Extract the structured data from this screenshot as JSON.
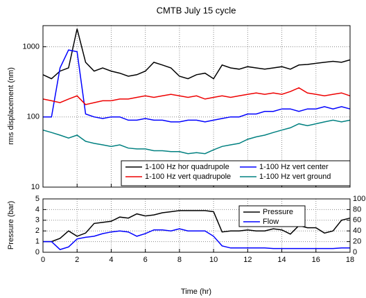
{
  "chart_data": [
    {
      "type": "line",
      "title": "CMTB July 15 cycle",
      "ylabel": "rms displacement (nm)",
      "log_scale": true,
      "grid": true,
      "legend": "lower right",
      "x": [
        0,
        0.5,
        1,
        1.5,
        2,
        2.5,
        3,
        3.5,
        4,
        4.5,
        5,
        5.5,
        6,
        6.5,
        7,
        7.5,
        8,
        8.5,
        9,
        9.5,
        10,
        10.5,
        11,
        11.5,
        12,
        12.5,
        13,
        13.5,
        14,
        14.5,
        15,
        15.5,
        16,
        16.5,
        17,
        17.5,
        18
      ],
      "xlim": [
        0,
        18
      ],
      "xticks": [
        0,
        2,
        4,
        6,
        8,
        10,
        12,
        14,
        16,
        18
      ],
      "ylim": [
        10,
        2000
      ],
      "yticks": [
        10,
        100,
        1000
      ],
      "series": [
        {
          "name": "1-100 Hz hor quadrupole",
          "color": "#000000",
          "values": [
            400,
            350,
            450,
            500,
            1800,
            600,
            450,
            500,
            450,
            420,
            380,
            400,
            450,
            600,
            550,
            500,
            380,
            350,
            400,
            420,
            350,
            550,
            500,
            480,
            520,
            500,
            480,
            500,
            520,
            480,
            550,
            560,
            580,
            600,
            620,
            600,
            650
          ]
        },
        {
          "name": "1-100 Hz vert center",
          "color": "#0000ff",
          "values": [
            100,
            100,
            500,
            900,
            850,
            110,
            100,
            95,
            100,
            100,
            90,
            90,
            95,
            90,
            90,
            85,
            85,
            90,
            90,
            85,
            90,
            95,
            100,
            100,
            110,
            110,
            120,
            120,
            130,
            130,
            120,
            130,
            130,
            140,
            130,
            140,
            130
          ]
        },
        {
          "name": "1-100 Hz vert quadrupole",
          "color": "#ee0000",
          "values": [
            180,
            170,
            160,
            180,
            200,
            150,
            160,
            170,
            170,
            180,
            180,
            190,
            200,
            190,
            200,
            210,
            200,
            190,
            200,
            180,
            190,
            200,
            190,
            200,
            210,
            220,
            210,
            220,
            210,
            230,
            260,
            220,
            210,
            200,
            210,
            220,
            200
          ]
        },
        {
          "name": "1-100 Hz vert ground",
          "color": "#008080",
          "values": [
            65,
            60,
            55,
            50,
            55,
            45,
            42,
            40,
            38,
            40,
            36,
            35,
            35,
            33,
            33,
            32,
            32,
            30,
            31,
            30,
            34,
            38,
            40,
            42,
            48,
            52,
            55,
            60,
            65,
            70,
            80,
            75,
            80,
            85,
            90,
            85,
            90
          ]
        }
      ]
    },
    {
      "type": "line",
      "ylabel": "Pressure (bar)",
      "xlabel": "Time (hr)",
      "grid": true,
      "legend": "upper center",
      "x": [
        0,
        0.5,
        1,
        1.5,
        2,
        2.5,
        3,
        3.5,
        4,
        4.5,
        5,
        5.5,
        6,
        6.5,
        7,
        7.5,
        8,
        8.5,
        9,
        9.5,
        10,
        10.5,
        11,
        11.5,
        12,
        12.5,
        13,
        13.5,
        14,
        14.5,
        15,
        15.5,
        16,
        16.5,
        17,
        17.5,
        18
      ],
      "xlim": [
        0,
        18
      ],
      "xticks": [
        0,
        2,
        4,
        6,
        8,
        10,
        12,
        14,
        16,
        18
      ],
      "ylim": [
        0,
        5
      ],
      "yticks": [
        0,
        1,
        2,
        3,
        4,
        5
      ],
      "y2lim": [
        0,
        100
      ],
      "y2ticks": [
        0,
        20,
        40,
        60,
        80,
        100
      ],
      "series": [
        {
          "name": "Pressure",
          "color": "#000000",
          "values": [
            1.0,
            1.0,
            1.3,
            2.0,
            1.5,
            1.8,
            2.7,
            2.8,
            2.9,
            3.3,
            3.2,
            3.6,
            3.4,
            3.5,
            3.7,
            3.8,
            3.9,
            3.9,
            3.9,
            3.9,
            3.8,
            1.9,
            2.0,
            2.0,
            2.1,
            2.0,
            2.0,
            2.2,
            2.1,
            1.7,
            2.5,
            2.3,
            2.3,
            1.8,
            2.0,
            3.0,
            3.2
          ]
        },
        {
          "name": "Flow",
          "color": "#0000ff",
          "axis": "y2",
          "values": [
            20,
            20,
            5,
            10,
            25,
            28,
            30,
            35,
            38,
            40,
            38,
            30,
            35,
            42,
            42,
            40,
            44,
            40,
            40,
            40,
            30,
            12,
            8,
            8,
            8,
            8,
            8,
            7,
            7,
            7,
            7,
            7,
            7,
            7,
            7,
            8,
            8
          ]
        }
      ]
    }
  ]
}
